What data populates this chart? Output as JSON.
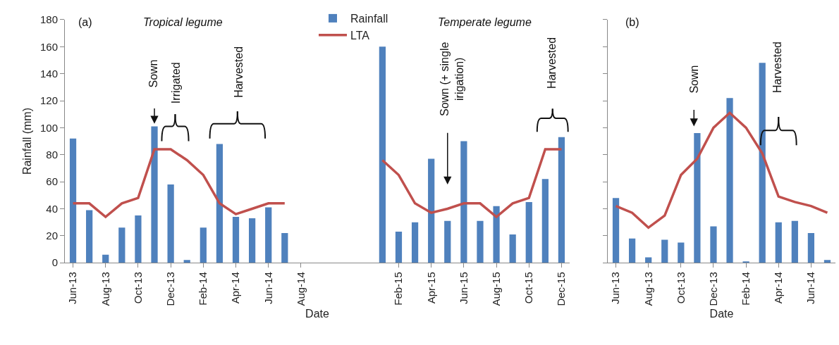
{
  "chart_data": [
    {
      "type": "bar",
      "xlabel": "Date",
      "ylabel": "Rainfall (mm)",
      "ylim": [
        0,
        180
      ],
      "yticks": [
        0,
        20,
        40,
        60,
        80,
        100,
        120,
        140,
        160,
        180
      ],
      "legend": "top",
      "categories": [
        "Jun-13",
        null,
        "Aug-13",
        null,
        "Oct-13",
        null,
        "Dec-13",
        null,
        "Feb-14",
        null,
        "Apr-14",
        null,
        "Jun-14",
        null,
        "Aug-14",
        null,
        null,
        null,
        null,
        null,
        "Feb-15",
        null,
        "Apr-15",
        null,
        "Jun-15",
        null,
        "Aug-15",
        null,
        "Oct-15",
        null,
        "Dec-15"
      ],
      "series": [
        {
          "name": "Rainfall",
          "color": "#4f81bd",
          "values": [
            92,
            39,
            6,
            26,
            35,
            101,
            58,
            2,
            26,
            88,
            34,
            33,
            41,
            22,
            null,
            null,
            null,
            null,
            null,
            160,
            23,
            30,
            77,
            31,
            90,
            31,
            42,
            21,
            45,
            62,
            93
          ]
        },
        {
          "name": "LTA",
          "type": "line",
          "color": "#c0504d",
          "values": [
            44,
            44,
            34,
            44,
            48,
            84,
            84,
            76,
            65,
            44,
            36,
            40,
            44,
            44,
            null,
            null,
            null,
            null,
            null,
            76,
            65,
            44,
            37,
            40,
            44,
            44,
            34,
            44,
            48,
            84,
            84
          ]
        }
      ],
      "annotations": [
        "(a)",
        "Tropical legume",
        "Sown",
        "Irrigated",
        "Harvested",
        "Temperate legume",
        "Sown (+ single\nirigation)",
        "Harvested"
      ]
    },
    {
      "type": "bar",
      "xlabel": "Date",
      "ylim": [
        0,
        180
      ],
      "yticks": [
        0,
        20,
        40,
        60,
        80,
        100,
        120,
        140,
        160,
        180
      ],
      "tick_labels": "x",
      "categories": [
        "Jun-13",
        null,
        "Aug-13",
        null,
        "Oct-13",
        null,
        "Dec-13",
        null,
        "Feb-14",
        null,
        "Apr-14",
        null,
        "Jun-14",
        null
      ],
      "series": [
        {
          "color": "#4f81bd",
          "values": [
            48,
            18,
            4,
            17,
            15,
            96,
            27,
            122,
            1,
            148,
            30,
            31,
            22,
            2
          ]
        },
        {
          "type": "line",
          "color": "#c0504d",
          "values": [
            42,
            37,
            26,
            35,
            65,
            77,
            100,
            111,
            100,
            81,
            49,
            45,
            42,
            37
          ]
        }
      ],
      "annotations": [
        "(b)",
        "Sown",
        "Harvested"
      ]
    }
  ]
}
